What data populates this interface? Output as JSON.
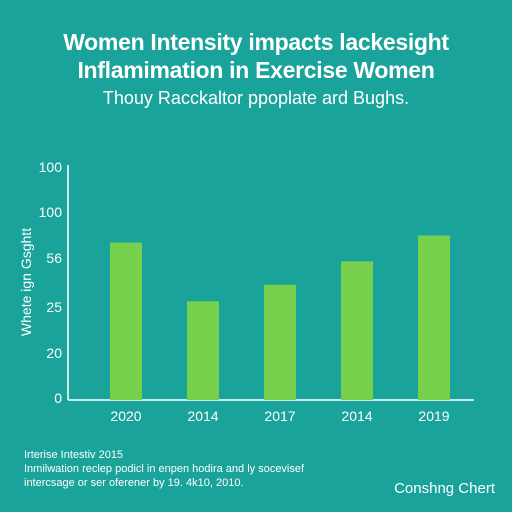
{
  "colors": {
    "background": "#1aa39a",
    "bar": "#77d04c",
    "text": "#ffffff",
    "axis": "#ffffff"
  },
  "chart_data": {
    "type": "bar",
    "title": "Women Intensity impacts lackesight Inflamimation in Exercise Women",
    "subtitle": "Thouy Racckaltor ppoplate ard Bughs.",
    "xlabel": "",
    "ylabel": "Whete ign Gsghtt",
    "categories": [
      "2020",
      "2014",
      "2017",
      "2014",
      "2019"
    ],
    "values": [
      67,
      42,
      49,
      59,
      70
    ],
    "yticks": [
      "0",
      "20",
      "25",
      "56",
      "100",
      "100"
    ],
    "ylim": [
      0,
      100
    ],
    "grid": false,
    "legend": "none"
  },
  "footnote": {
    "lines": [
      "Irterise Intestiv 2015",
      "Inmilwation reclep podicl in enpen hodira and ly socevisef",
      "intercsage or ser oferener by 19. 4k10, 2010."
    ]
  },
  "brand": "Conshng Chert"
}
